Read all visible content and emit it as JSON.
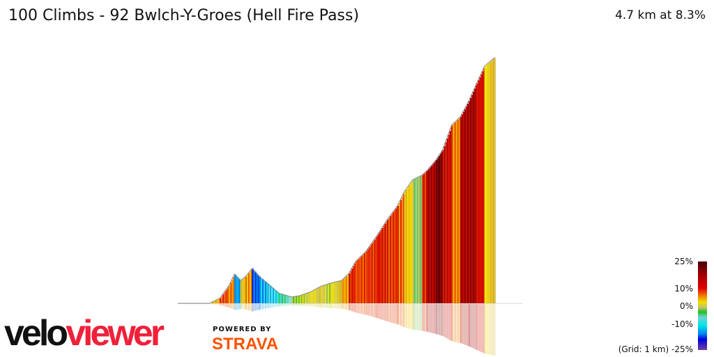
{
  "header": {
    "title": "100 Climbs - 92 Bwlch-Y-Groes (Hell Fire Pass)",
    "summary": "4.7 km at 8.3%"
  },
  "legend": {
    "labels": [
      "25%",
      "10%",
      "0%",
      "-10%",
      "(Grid: 1 km) -25%"
    ]
  },
  "branding": {
    "logo_part1": "velo",
    "logo_part2": "viewer",
    "powered_by": "POWERED BY",
    "strava": "STRAVA",
    "logo_color": "#f0203a",
    "strava_color": "#fc5200"
  },
  "chart_data": {
    "type": "area",
    "title": "",
    "xlabel": "",
    "grid_km": 1,
    "color_scale": [
      {
        "pct": -25,
        "color": "#7040a0"
      },
      {
        "pct": -15,
        "color": "#0000e0"
      },
      {
        "pct": -8,
        "color": "#00e0f0"
      },
      {
        "pct": -3,
        "color": "#90e0e0"
      },
      {
        "pct": 0,
        "color": "#20c020"
      },
      {
        "pct": 3,
        "color": "#c8c070"
      },
      {
        "pct": 6,
        "color": "#f0e800"
      },
      {
        "pct": 10,
        "color": "#f08000"
      },
      {
        "pct": 14,
        "color": "#e01000"
      },
      {
        "pct": 20,
        "color": "#900000"
      },
      {
        "pct": 25,
        "color": "#4a0008"
      }
    ],
    "profile": [
      {
        "km": 0.0,
        "elev": 0,
        "grad": 0
      },
      {
        "km": 0.52,
        "elev": 0,
        "grad": 2
      },
      {
        "km": 0.69,
        "elev": 8,
        "grad": 8
      },
      {
        "km": 0.84,
        "elev": 28,
        "grad": 12
      },
      {
        "km": 0.93,
        "elev": 46,
        "grad": 10
      },
      {
        "km": 1.03,
        "elev": 36,
        "grad": -10
      },
      {
        "km": 1.11,
        "elev": 42,
        "grad": 6
      },
      {
        "km": 1.22,
        "elev": 55,
        "grad": 9
      },
      {
        "km": 1.34,
        "elev": 42,
        "grad": -12
      },
      {
        "km": 1.49,
        "elev": 30,
        "grad": -9
      },
      {
        "km": 1.66,
        "elev": 16,
        "grad": -7
      },
      {
        "km": 1.87,
        "elev": 10,
        "grad": -3
      },
      {
        "km": 2.0,
        "elev": 12,
        "grad": 2
      },
      {
        "km": 2.18,
        "elev": 18,
        "grad": 4
      },
      {
        "km": 2.35,
        "elev": 27,
        "grad": 5
      },
      {
        "km": 2.52,
        "elev": 32,
        "grad": 4
      },
      {
        "km": 2.69,
        "elev": 36,
        "grad": 5
      },
      {
        "km": 2.81,
        "elev": 47,
        "grad": 9
      },
      {
        "km": 2.92,
        "elev": 66,
        "grad": 14
      },
      {
        "km": 3.09,
        "elev": 82,
        "grad": 12
      },
      {
        "km": 3.26,
        "elev": 105,
        "grad": 13
      },
      {
        "km": 3.44,
        "elev": 132,
        "grad": 14
      },
      {
        "km": 3.61,
        "elev": 154,
        "grad": 13
      },
      {
        "km": 3.72,
        "elev": 176,
        "grad": 11
      },
      {
        "km": 3.86,
        "elev": 195,
        "grad": 7
      },
      {
        "km": 4.01,
        "elev": 202,
        "grad": 1
      },
      {
        "km": 4.09,
        "elev": 209,
        "grad": 14
      },
      {
        "km": 4.24,
        "elev": 226,
        "grad": 18
      },
      {
        "km": 4.35,
        "elev": 242,
        "grad": 22
      },
      {
        "km": 4.5,
        "elev": 281,
        "grad": 16
      },
      {
        "km": 4.64,
        "elev": 294,
        "grad": 10
      },
      {
        "km": 4.78,
        "elev": 319,
        "grad": 18
      },
      {
        "km": 4.91,
        "elev": 347,
        "grad": 19
      },
      {
        "km": 5.04,
        "elev": 374,
        "grad": 15
      },
      {
        "km": 5.21,
        "elev": 388,
        "grad": 6
      }
    ]
  }
}
